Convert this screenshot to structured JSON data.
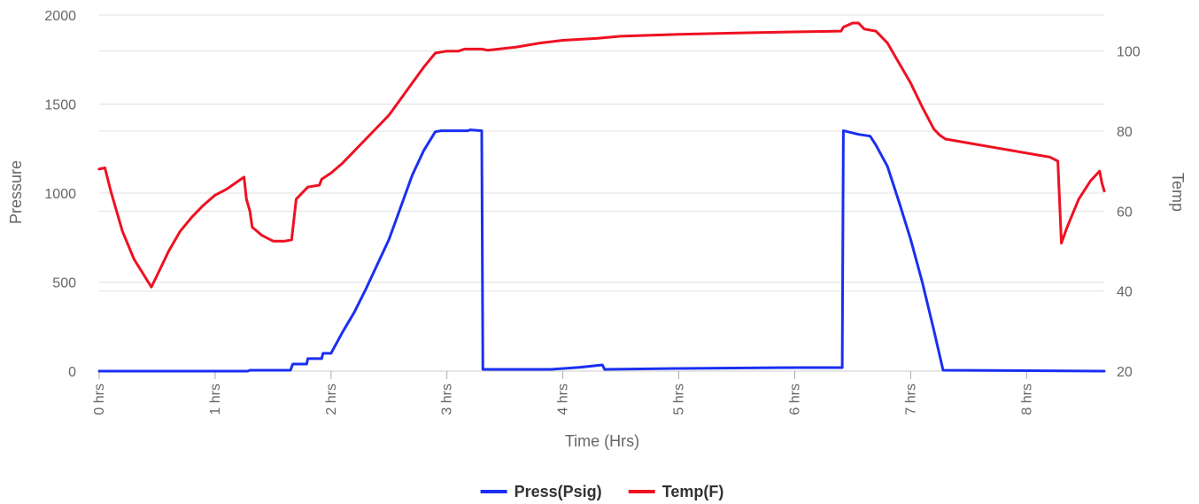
{
  "chart_data": {
    "type": "line",
    "xlabel": "Time (Hrs)",
    "ylabel_left": "Pressure",
    "ylabel_right": "Temp",
    "x_ticks": [
      {
        "value": 0,
        "label": "0 hrs"
      },
      {
        "value": 1,
        "label": "1 hrs"
      },
      {
        "value": 2,
        "label": "2 hrs"
      },
      {
        "value": 3,
        "label": "3 hrs"
      },
      {
        "value": 4,
        "label": "4 hrs"
      },
      {
        "value": 5,
        "label": "5 hrs"
      },
      {
        "value": 6,
        "label": "6 hrs"
      },
      {
        "value": 7,
        "label": "7 hrs"
      },
      {
        "value": 8,
        "label": "8 hrs"
      }
    ],
    "xlim": [
      0,
      8.67
    ],
    "y_left_ticks": [
      0,
      500,
      1000,
      1500,
      2000
    ],
    "ylim_left": [
      0,
      2000
    ],
    "y_right_ticks": [
      20,
      40,
      60,
      80,
      100
    ],
    "ylim_right": [
      20,
      109
    ],
    "grid": true,
    "legend_position": "bottom-center",
    "series": [
      {
        "name": "Press(Psig)",
        "color": "#1a2ff0",
        "axis": "left",
        "points": [
          [
            0,
            0
          ],
          [
            1.28,
            0
          ],
          [
            1.3,
            5
          ],
          [
            1.65,
            5
          ],
          [
            1.67,
            40
          ],
          [
            1.79,
            40
          ],
          [
            1.8,
            70
          ],
          [
            1.92,
            70
          ],
          [
            1.93,
            100
          ],
          [
            2.0,
            100
          ],
          [
            2.05,
            160
          ],
          [
            2.1,
            220
          ],
          [
            2.2,
            330
          ],
          [
            2.3,
            460
          ],
          [
            2.4,
            600
          ],
          [
            2.5,
            740
          ],
          [
            2.6,
            920
          ],
          [
            2.7,
            1100
          ],
          [
            2.8,
            1240
          ],
          [
            2.9,
            1345
          ],
          [
            2.95,
            1350
          ],
          [
            3.1,
            1350
          ],
          [
            3.18,
            1350
          ],
          [
            3.2,
            1355
          ],
          [
            3.3,
            1350
          ],
          [
            3.31,
            10
          ],
          [
            3.9,
            10
          ],
          [
            4.15,
            22
          ],
          [
            4.34,
            35
          ],
          [
            4.36,
            10
          ],
          [
            5.0,
            15
          ],
          [
            6.0,
            20
          ],
          [
            6.41,
            20
          ],
          [
            6.42,
            1350
          ],
          [
            6.55,
            1330
          ],
          [
            6.65,
            1320
          ],
          [
            6.7,
            1270
          ],
          [
            6.8,
            1150
          ],
          [
            6.9,
            950
          ],
          [
            7.0,
            740
          ],
          [
            7.1,
            500
          ],
          [
            7.2,
            230
          ],
          [
            7.28,
            5
          ],
          [
            8.67,
            0
          ]
        ]
      },
      {
        "name": "Temp(F)",
        "color": "#ee1122",
        "axis": "right",
        "points": [
          [
            0,
            70.5
          ],
          [
            0.05,
            70.8
          ],
          [
            0.1,
            65
          ],
          [
            0.2,
            55
          ],
          [
            0.3,
            48
          ],
          [
            0.45,
            41
          ],
          [
            0.5,
            44
          ],
          [
            0.6,
            50
          ],
          [
            0.7,
            55
          ],
          [
            0.8,
            58.5
          ],
          [
            0.9,
            61.5
          ],
          [
            1.0,
            64
          ],
          [
            1.1,
            65.5
          ],
          [
            1.2,
            67.5
          ],
          [
            1.25,
            68.5
          ],
          [
            1.27,
            63
          ],
          [
            1.3,
            60
          ],
          [
            1.32,
            56
          ],
          [
            1.4,
            54
          ],
          [
            1.5,
            52.5
          ],
          [
            1.6,
            52.5
          ],
          [
            1.66,
            52.8
          ],
          [
            1.7,
            63
          ],
          [
            1.8,
            66
          ],
          [
            1.9,
            66.5
          ],
          [
            1.92,
            68
          ],
          [
            2.0,
            69.5
          ],
          [
            2.1,
            72
          ],
          [
            2.2,
            75
          ],
          [
            2.3,
            78
          ],
          [
            2.4,
            81
          ],
          [
            2.5,
            84
          ],
          [
            2.6,
            88
          ],
          [
            2.7,
            92
          ],
          [
            2.8,
            96
          ],
          [
            2.9,
            99.5
          ],
          [
            3.0,
            100
          ],
          [
            3.1,
            100
          ],
          [
            3.15,
            100.5
          ],
          [
            3.3,
            100.5
          ],
          [
            3.35,
            100.2
          ],
          [
            3.6,
            101
          ],
          [
            3.8,
            102
          ],
          [
            4.0,
            102.7
          ],
          [
            4.3,
            103.2
          ],
          [
            4.5,
            103.7
          ],
          [
            5.0,
            104.2
          ],
          [
            5.5,
            104.5
          ],
          [
            6.0,
            104.8
          ],
          [
            6.4,
            105
          ],
          [
            6.42,
            106
          ],
          [
            6.5,
            107
          ],
          [
            6.55,
            107
          ],
          [
            6.6,
            105.5
          ],
          [
            6.7,
            105
          ],
          [
            6.8,
            102
          ],
          [
            6.9,
            97
          ],
          [
            7.0,
            92
          ],
          [
            7.1,
            86
          ],
          [
            7.2,
            80.5
          ],
          [
            7.25,
            79
          ],
          [
            7.3,
            78
          ],
          [
            7.5,
            77
          ],
          [
            7.8,
            75.5
          ],
          [
            8.1,
            74
          ],
          [
            8.2,
            73.5
          ],
          [
            8.27,
            72.5
          ],
          [
            8.3,
            52
          ],
          [
            8.35,
            56
          ],
          [
            8.45,
            63
          ],
          [
            8.55,
            67.5
          ],
          [
            8.63,
            70
          ],
          [
            8.65,
            67
          ],
          [
            8.67,
            65
          ]
        ]
      }
    ]
  }
}
